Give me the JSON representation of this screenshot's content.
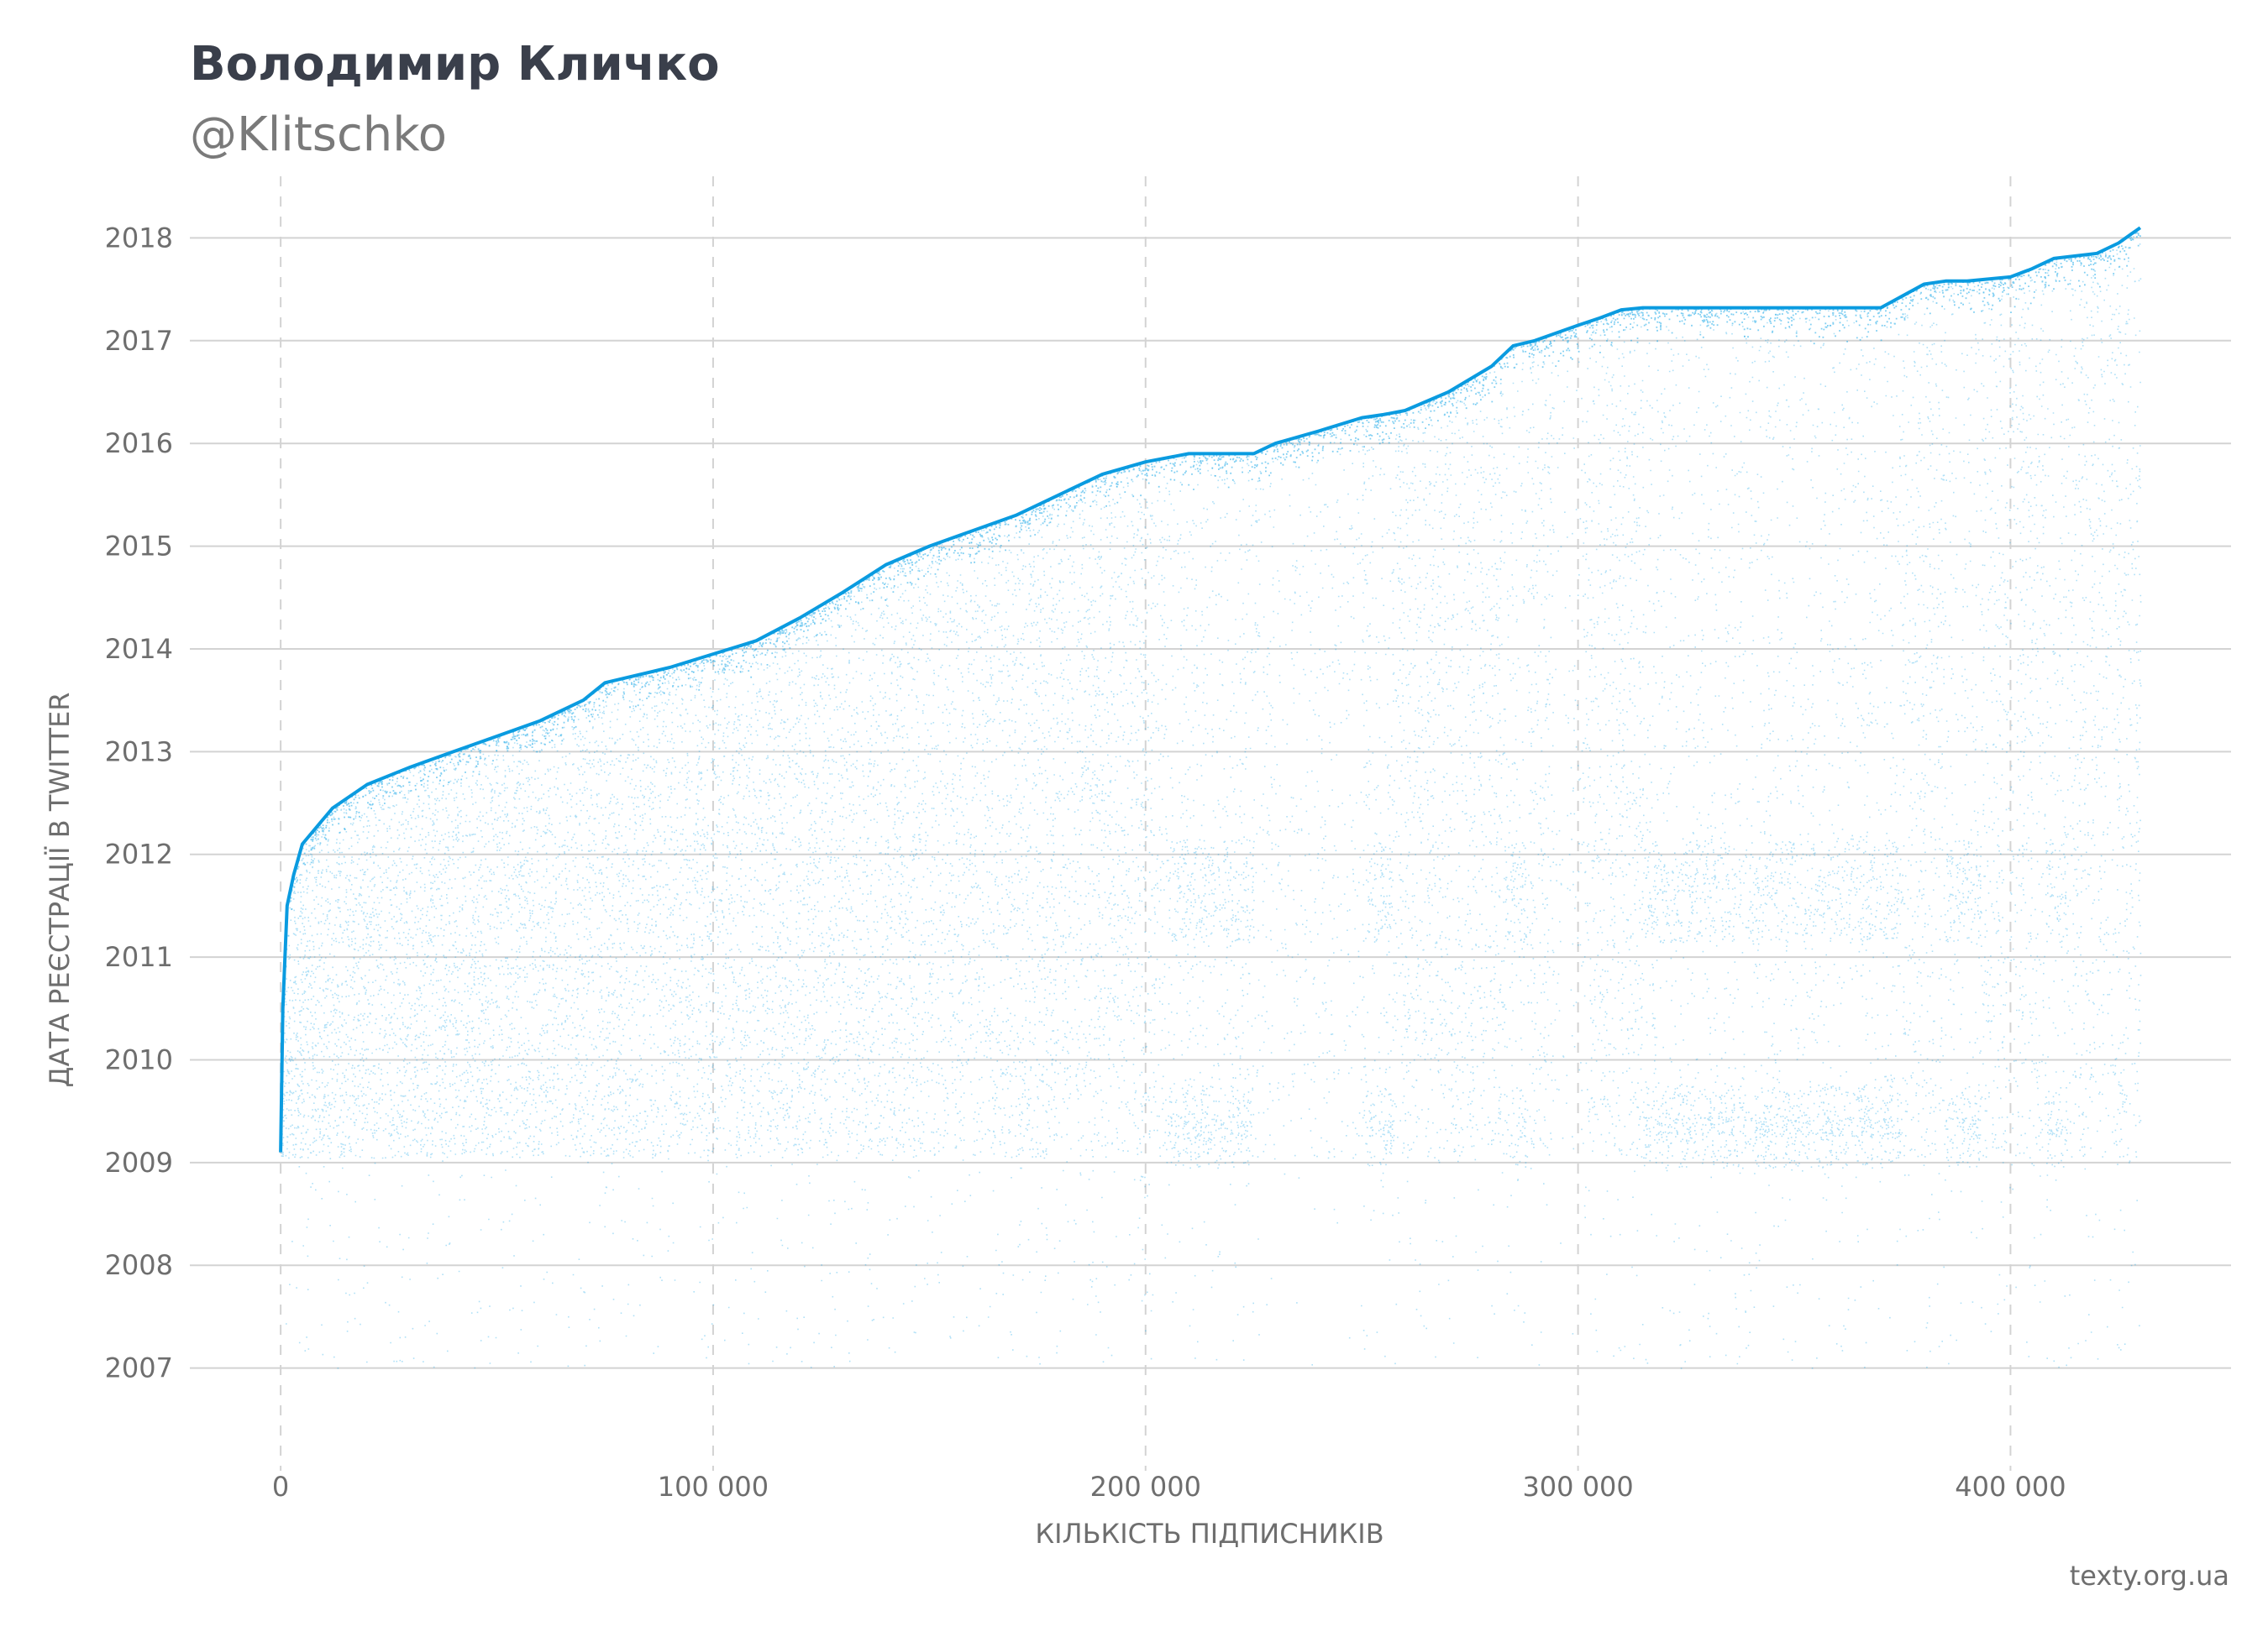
{
  "title": "Володимир Кличко",
  "subtitle": "@Klitschko",
  "source": "texty.org.ua",
  "colors": {
    "points": "#1aa7e8",
    "frontier": "#0a9be0",
    "grid": "#d3d3d3",
    "title": "#3a3f4b",
    "muted": "#6e6e6e"
  },
  "chart_data": {
    "type": "scatter",
    "xlabel": "КІЛЬКІСТЬ ПІДПИСНИКІВ",
    "ylabel": "ДАТА РЕЄСТРАЦІЇ В TWITTER",
    "xlim": [
      -21000,
      451000
    ],
    "ylim": [
      2006,
      2018.6
    ],
    "x_ticks": [
      0,
      100000,
      200000,
      300000,
      400000
    ],
    "x_tick_labels": [
      "0",
      "100 000",
      "200 000",
      "300 000",
      "400 000"
    ],
    "y_ticks": [
      2007,
      2008,
      2009,
      2010,
      2011,
      2012,
      2013,
      2014,
      2015,
      2016,
      2017,
      2018
    ],
    "y_tick_labels": [
      "2007",
      "2008",
      "2009",
      "2010",
      "2011",
      "2012",
      "2013",
      "2014",
      "2015",
      "2016",
      "2017",
      "2018"
    ],
    "grid": {
      "horizontal": "solid",
      "vertical": "dashed"
    },
    "total_followers": 430000,
    "frontier": {
      "x": [
        0,
        500,
        1500,
        3000,
        5000,
        8000,
        12000,
        20000,
        30000,
        40000,
        50000,
        60000,
        70000,
        75000,
        80000,
        90000,
        100000,
        110000,
        120000,
        130000,
        140000,
        150000,
        160000,
        170000,
        180000,
        190000,
        200000,
        210000,
        220000,
        225000,
        230000,
        240000,
        250000,
        255000,
        260000,
        270000,
        280000,
        285000,
        290000,
        300000,
        305000,
        310000,
        315000,
        320000,
        340000,
        370000,
        380000,
        385000,
        390000,
        400000,
        405000,
        410000,
        420000,
        425000,
        430000
      ],
      "y": [
        2009.1,
        2010.5,
        2011.5,
        2011.8,
        2012.1,
        2012.25,
        2012.45,
        2012.68,
        2012.85,
        2013.0,
        2013.15,
        2013.3,
        2013.5,
        2013.67,
        2013.72,
        2013.82,
        2013.95,
        2014.08,
        2014.3,
        2014.55,
        2014.82,
        2015.0,
        2015.15,
        2015.3,
        2015.5,
        2015.7,
        2015.82,
        2015.9,
        2015.9,
        2015.9,
        2016.0,
        2016.12,
        2016.25,
        2016.28,
        2016.32,
        2016.5,
        2016.75,
        2016.95,
        2017.0,
        2017.15,
        2017.22,
        2017.3,
        2017.32,
        2017.32,
        2017.32,
        2017.32,
        2017.55,
        2017.58,
        2017.58,
        2017.62,
        2017.7,
        2017.8,
        2017.85,
        2017.95,
        2018.1
      ]
    },
    "dense_vertical_bands": [
      [
        205000,
        225000
      ],
      [
        251000,
        257000
      ],
      [
        283000,
        288000
      ],
      [
        315000,
        375000
      ],
      [
        385000,
        393000
      ],
      [
        408000,
        413000
      ]
    ],
    "sparse_vertical_bands": [
      [
        226000,
        250000
      ],
      [
        294000,
        301000
      ]
    ],
    "dense_registration_years": [
      2009.2,
      2009.5,
      2011.4,
      2011.9
    ]
  }
}
